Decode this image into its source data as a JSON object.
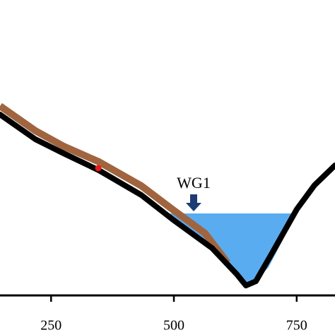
{
  "chart_data": {
    "type": "cross-section",
    "xlim": [
      146,
      828
    ],
    "xticks": [
      250,
      500,
      750
    ],
    "annotations": [
      "WG1"
    ],
    "water_color": "#5aacf0",
    "ground_color": "#a0653f",
    "line_color": "#000000"
  }
}
